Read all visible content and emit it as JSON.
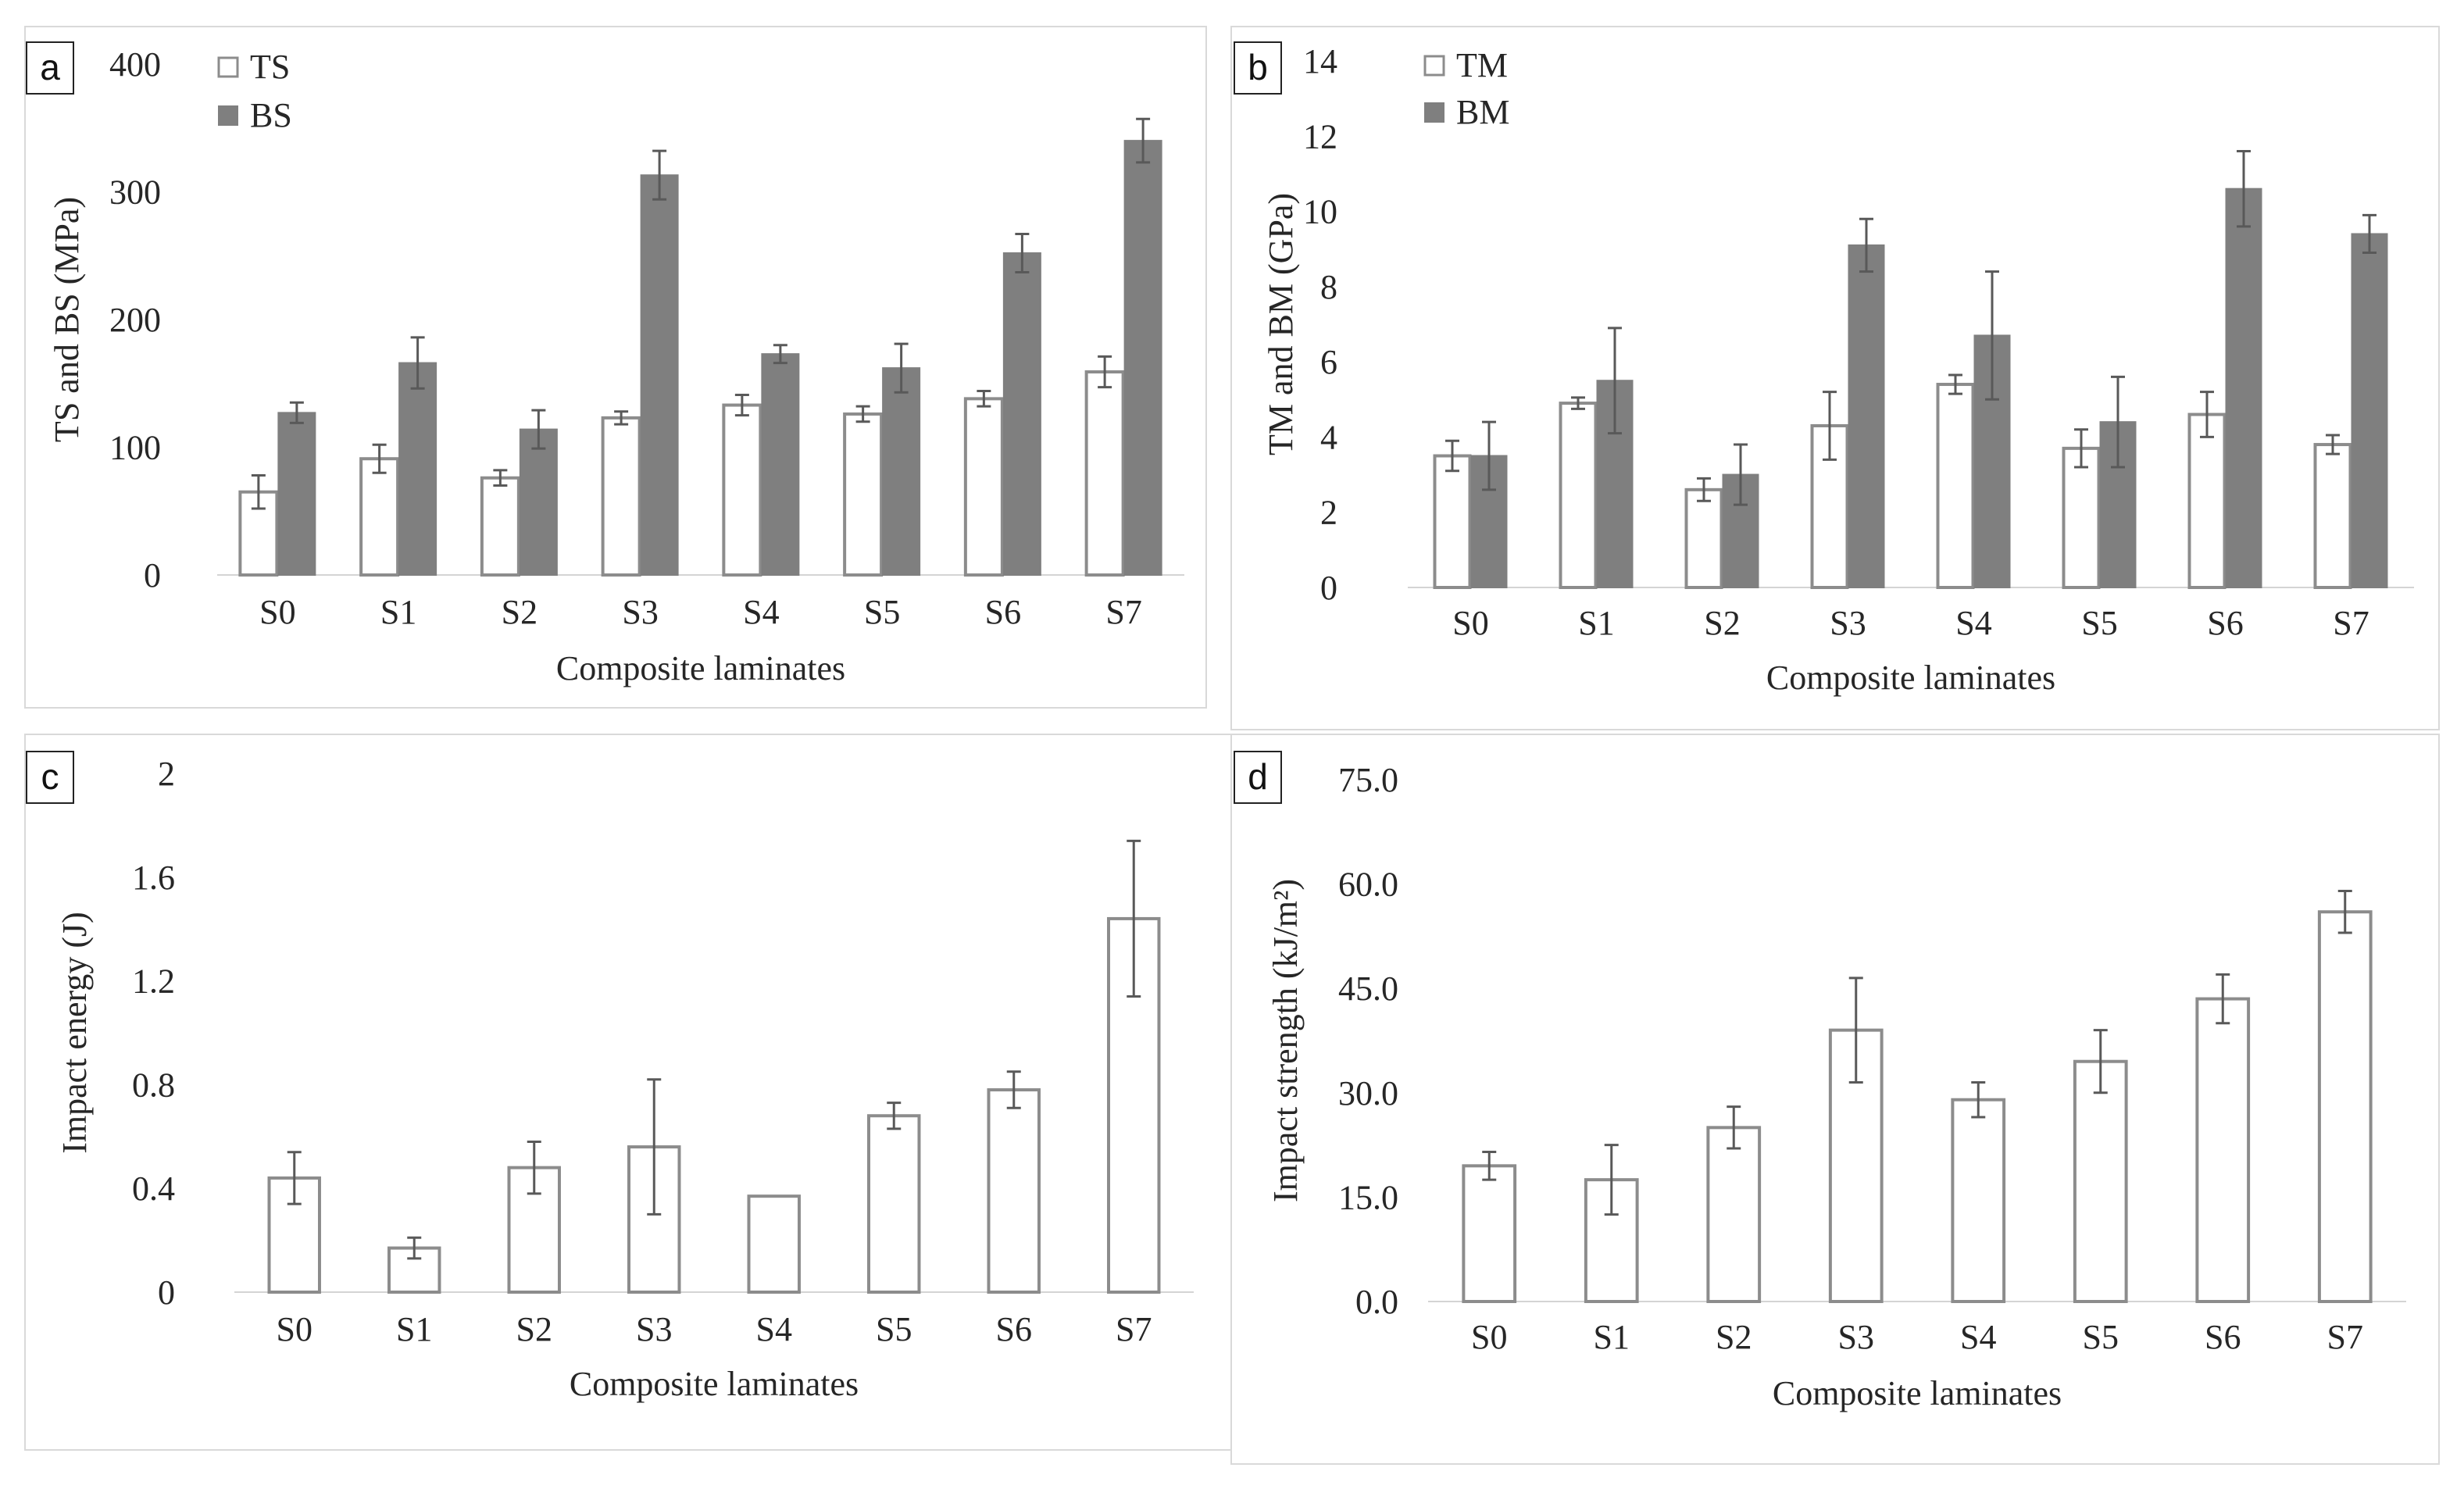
{
  "chart_data": [
    {
      "panel": "a",
      "type": "bar",
      "categories": [
        "S0",
        "S1",
        "S2",
        "S3",
        "S4",
        "S5",
        "S6",
        "S7"
      ],
      "series": [
        {
          "name": "TS",
          "style": "open",
          "values": [
            65,
            91,
            76,
            123,
            133,
            126,
            138,
            159
          ],
          "errors": [
            13,
            11,
            6,
            5,
            8,
            6,
            6,
            12
          ]
        },
        {
          "name": "BS",
          "style": "filled",
          "values": [
            127,
            166,
            114,
            313,
            173,
            162,
            252,
            340
          ],
          "errors": [
            8,
            20,
            15,
            19,
            7,
            19,
            15,
            17
          ]
        }
      ],
      "xlabel": "Composite laminates",
      "ylabel": "TS and BS (MPa)",
      "ylim": [
        0,
        400
      ],
      "yticks": [
        0,
        100,
        200,
        300,
        400
      ],
      "ytick_labels": [
        "0",
        "100",
        "200",
        "300",
        "400"
      ],
      "legend": "top-left",
      "grid": false
    },
    {
      "panel": "b",
      "type": "bar",
      "categories": [
        "S0",
        "S1",
        "S2",
        "S3",
        "S4",
        "S5",
        "S6",
        "S7"
      ],
      "series": [
        {
          "name": "TM",
          "style": "open",
          "values": [
            3.5,
            4.9,
            2.6,
            4.3,
            5.4,
            3.7,
            4.6,
            3.8
          ],
          "errors": [
            0.4,
            0.15,
            0.3,
            0.9,
            0.25,
            0.5,
            0.6,
            0.25
          ]
        },
        {
          "name": "BM",
          "style": "filled",
          "values": [
            3.5,
            5.5,
            3.0,
            9.1,
            6.7,
            4.4,
            10.6,
            9.4
          ],
          "errors": [
            0.9,
            1.4,
            0.8,
            0.7,
            1.7,
            1.2,
            1.0,
            0.5
          ]
        }
      ],
      "xlabel": "Composite laminates",
      "ylabel": "TM and BM (GPa)",
      "ylim": [
        0,
        14
      ],
      "yticks": [
        0,
        2,
        4,
        6,
        8,
        10,
        12,
        14
      ],
      "ytick_labels": [
        "0",
        "2",
        "4",
        "6",
        "8",
        "10",
        "12",
        "14"
      ],
      "legend": "top-left",
      "grid": false
    },
    {
      "panel": "c",
      "type": "bar",
      "categories": [
        "S0",
        "S1",
        "S2",
        "S3",
        "S4",
        "S5",
        "S6",
        "S7"
      ],
      "series": [
        {
          "name": "Impact energy",
          "style": "open",
          "values": [
            0.44,
            0.17,
            0.48,
            0.56,
            0.37,
            0.68,
            0.78,
            1.44
          ],
          "errors": [
            0.1,
            0.04,
            0.1,
            0.26,
            0,
            0.05,
            0.07,
            0.3
          ]
        }
      ],
      "xlabel": "Composite laminates",
      "ylabel": "Impact energy (J)",
      "ylim": [
        0,
        2
      ],
      "yticks": [
        0,
        0.4,
        0.8,
        1.2,
        1.6,
        2
      ],
      "ytick_labels": [
        "0",
        "0.4",
        "0.8",
        "1.2",
        "1.6",
        "2"
      ],
      "legend": "none",
      "grid": false
    },
    {
      "panel": "d",
      "type": "bar",
      "categories": [
        "S0",
        "S1",
        "S2",
        "S3",
        "S4",
        "S5",
        "S6",
        "S7"
      ],
      "series": [
        {
          "name": "Impact strength",
          "style": "open",
          "values": [
            19.5,
            17.5,
            25,
            39,
            29,
            34.5,
            43.5,
            56
          ],
          "errors": [
            2,
            5,
            3,
            7.5,
            2.5,
            4.5,
            3.5,
            3
          ]
        }
      ],
      "xlabel": "Composite laminates",
      "ylabel": "Impact strength (kJ/m²)",
      "ylim": [
        0,
        75
      ],
      "yticks": [
        0,
        15,
        30,
        45,
        60,
        75
      ],
      "ytick_labels": [
        "0.0",
        "15.0",
        "30.0",
        "45.0",
        "60.0",
        "75.0"
      ],
      "legend": "none",
      "grid": false
    }
  ],
  "colors": {
    "filled_bar": "#7f7f7f",
    "open_bar_stroke": "#8c8c8c",
    "error_bar": "#595959",
    "axis": "#d4d4d4",
    "text": "#262626"
  }
}
